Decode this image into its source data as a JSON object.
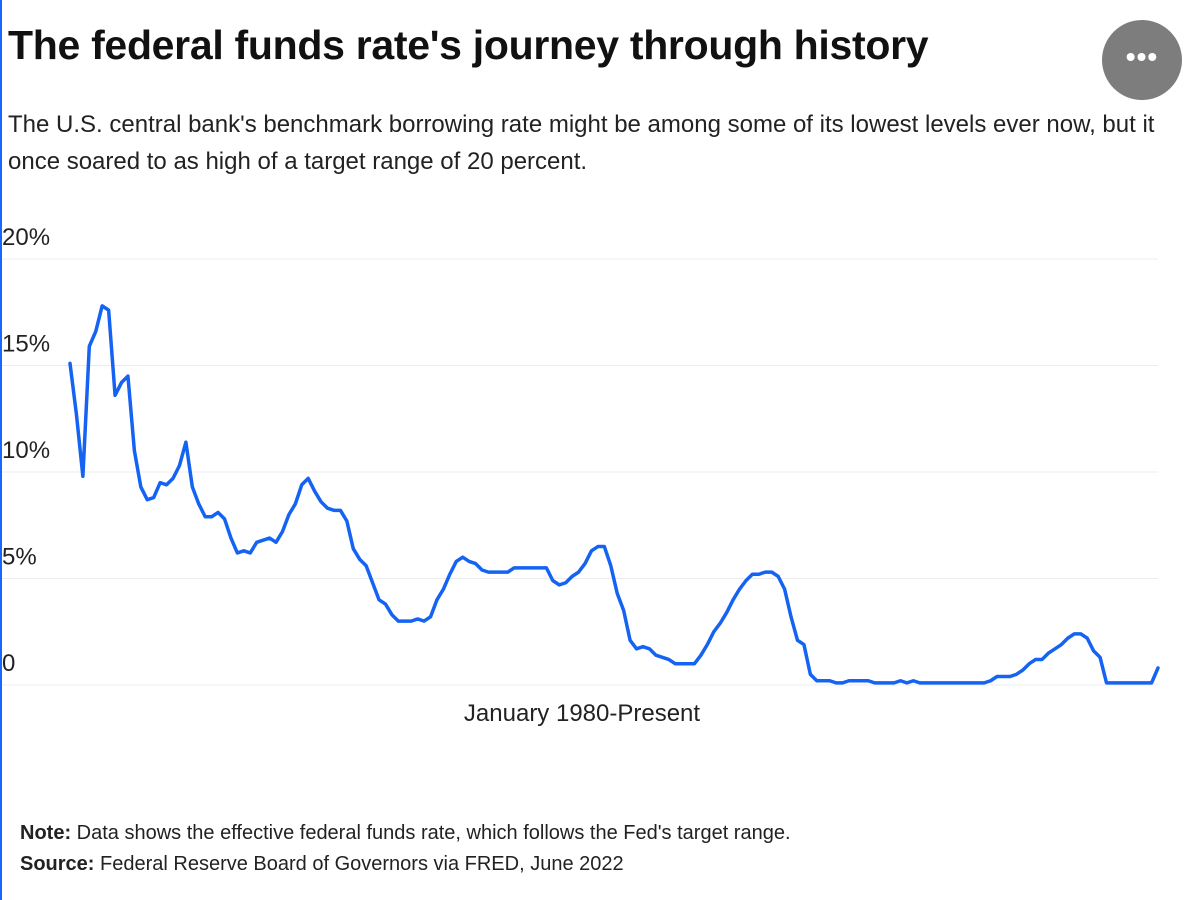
{
  "chart_data": {
    "type": "line",
    "title": "The federal funds rate's journey through history",
    "subtitle": "The U.S. central bank's benchmark borrowing rate might be among some of its lowest levels ever now, but it once soared to as high of a target range of 20 percent.",
    "x_label": "January 1980-Present",
    "note": {
      "label": "Note:",
      "text": "Data shows the effective federal funds rate, which follows the Fed's target range."
    },
    "source": {
      "label": "Source:",
      "text": "Federal Reserve Board of Governors via FRED, June 2022"
    },
    "ylim": [
      0,
      20
    ],
    "yticks": [
      0,
      {
        "value": 5,
        "label": "5%"
      },
      {
        "value": 10,
        "label": "10%"
      },
      {
        "value": 15,
        "label": "15%"
      },
      {
        "value": 20,
        "label": "20%"
      }
    ],
    "grid": true,
    "color": "#1463f3",
    "values": [
      15.1,
      12.7,
      9.8,
      15.9,
      16.6,
      17.8,
      17.6,
      13.6,
      14.2,
      14.5,
      11,
      9.3,
      8.7,
      8.8,
      9.5,
      9.4,
      9.7,
      10.3,
      11.4,
      9.3,
      8.5,
      7.9,
      7.9,
      8.1,
      7.8,
      6.9,
      6.2,
      6.3,
      6.2,
      6.7,
      6.8,
      6.9,
      6.7,
      7.2,
      8.0,
      8.5,
      9.4,
      9.7,
      9.1,
      8.6,
      8.3,
      8.2,
      8.2,
      7.7,
      6.4,
      5.9,
      5.6,
      4.8,
      4.0,
      3.8,
      3.3,
      3.0,
      3.0,
      3.0,
      3.1,
      3.0,
      3.2,
      4.0,
      4.5,
      5.2,
      5.8,
      6.0,
      5.8,
      5.7,
      5.4,
      5.3,
      5.3,
      5.3,
      5.3,
      5.5,
      5.5,
      5.5,
      5.5,
      5.5,
      5.5,
      4.9,
      4.7,
      4.8,
      5.1,
      5.3,
      5.7,
      6.3,
      6.5,
      6.5,
      5.6,
      4.3,
      3.5,
      2.1,
      1.7,
      1.8,
      1.7,
      1.4,
      1.3,
      1.2,
      1.0,
      1.0,
      1.0,
      1.0,
      1.4,
      1.9,
      2.5,
      2.9,
      3.4,
      4.0,
      4.5,
      4.9,
      5.2,
      5.2,
      5.3,
      5.3,
      5.1,
      4.5,
      3.2,
      2.1,
      1.9,
      0.5,
      0.2,
      0.2,
      0.2,
      0.1,
      0.1,
      0.2,
      0.2,
      0.2,
      0.2,
      0.1,
      0.1,
      0.1,
      0.1,
      0.2,
      0.1,
      0.2,
      0.1,
      0.1,
      0.1,
      0.1,
      0.1,
      0.1,
      0.1,
      0.1,
      0.1,
      0.1,
      0.1,
      0.2,
      0.4,
      0.4,
      0.4,
      0.5,
      0.7,
      1.0,
      1.2,
      1.2,
      1.5,
      1.7,
      1.9,
      2.2,
      2.4,
      2.4,
      2.2,
      1.6,
      1.3,
      0.1,
      0.1,
      0.1,
      0.1,
      0.1,
      0.1,
      0.1,
      0.1,
      0.8
    ]
  }
}
